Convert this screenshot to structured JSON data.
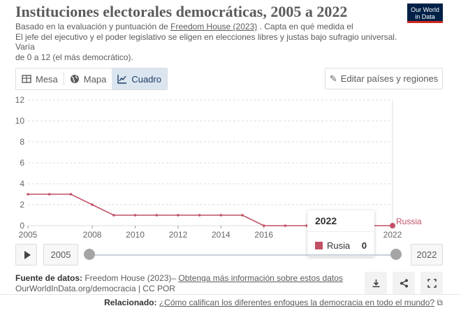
{
  "title": "Instituciones electorales democráticas, 2005 a 2022",
  "logo": {
    "line1": "Our World",
    "line2": "in Data"
  },
  "subtitle": {
    "part1": "Basado en la evaluación y puntuación de ",
    "source_link": "Freedom House (2023)",
    "part2": " . Capta en qué medida el",
    "line2": "El jefe del ejecutivo y el poder legislativo se eligen en elecciones libres y justas bajo sufragio universal.",
    "line3": "Varía",
    "line4": "de 0 a 12 (el más democrático)."
  },
  "tabs": [
    {
      "label": "Mesa",
      "icon": "table-icon",
      "active": false
    },
    {
      "label": "Mapa",
      "icon": "globe-icon",
      "active": false
    },
    {
      "label": "Cuadro",
      "icon": "line-chart-icon",
      "active": true
    }
  ],
  "edit_button": {
    "label": "Editar países y regiones",
    "icon": "pencil-icon"
  },
  "colors": {
    "series": "#c15065",
    "grid": "#dddddd",
    "axis_text": "#666666"
  },
  "chart_data": {
    "type": "line",
    "title": "Instituciones electorales democráticas, 2005 a 2022",
    "xlabel": "",
    "ylabel": "",
    "xlim": [
      2005,
      2022
    ],
    "ylim": [
      0,
      12
    ],
    "y_ticks": [
      0,
      2,
      4,
      6,
      8,
      10,
      12
    ],
    "x_ticks": [
      2005,
      2008,
      2010,
      2012,
      2014,
      2016,
      2022
    ],
    "grid": true,
    "series": [
      {
        "name": "Russia",
        "label": "Russia",
        "x": [
          2005,
          2006,
          2007,
          2008,
          2009,
          2010,
          2011,
          2012,
          2013,
          2014,
          2015,
          2016,
          2017,
          2018,
          2019,
          2020,
          2021,
          2022
        ],
        "values": [
          3,
          3,
          3,
          2,
          1,
          1,
          1,
          1,
          1,
          1,
          1,
          0,
          0,
          0,
          0,
          0,
          0,
          0
        ]
      }
    ]
  },
  "tooltip": {
    "year": "2022",
    "country": "Rusia",
    "value": "0"
  },
  "timeline": {
    "start": "2005",
    "end": "2022"
  },
  "footer": {
    "source_label": "Fuente de datos:",
    "source_text": " Freedom House (2023)– ",
    "more_link": "Obtenga más información sobre estos datos",
    "url_line": "OurWorldInData.org/democracia | CC POR"
  },
  "actions": [
    {
      "name": "download-button",
      "icon": "download-icon",
      "glyph": "⤓"
    },
    {
      "name": "share-button",
      "icon": "share-icon",
      "glyph": "⋖"
    },
    {
      "name": "fullscreen-button",
      "icon": "expand-icon",
      "glyph": "⛶"
    }
  ],
  "related": {
    "label": "Relacionado:",
    "link": "¿Cómo califican los diferentes enfoques la democracia en todo el mundo?",
    "icon": "external-link-icon"
  }
}
